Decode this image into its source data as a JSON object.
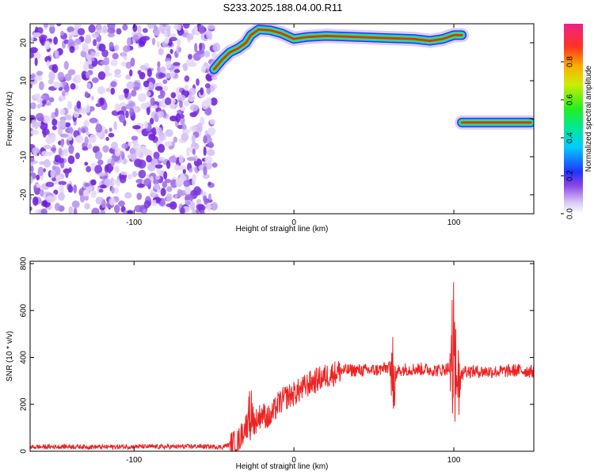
{
  "title": "S233.2025.188.04.00.R11",
  "chart_data": [
    {
      "type": "heatmap",
      "xlabel": "Height of straight line (km)",
      "ylabel": "Frequency (Hz)",
      "xlim": [
        -165,
        150
      ],
      "ylim": [
        -25,
        25
      ],
      "xticks": [
        -100,
        0,
        100
      ],
      "yticks": [
        -20,
        -10,
        0,
        10,
        20
      ],
      "colorbar": {
        "label": "Normalized spectral amplitude",
        "range": [
          0,
          1
        ],
        "ticks": [
          "0.0",
          "0.2",
          "0.4",
          "0.6",
          "0.8"
        ],
        "tick_values": [
          0,
          0.2,
          0.4,
          0.6,
          0.8
        ]
      },
      "features": [
        {
          "name": "noise",
          "x_range": [
            -165,
            -52
          ],
          "y_range": [
            -25,
            25
          ]
        },
        {
          "name": "ridge_upper",
          "points": [
            [
              -50,
              13
            ],
            [
              -45,
              15.5
            ],
            [
              -40,
              17.5
            ],
            [
              -35,
              18.5
            ],
            [
              -30,
              20
            ],
            [
              -27,
              22
            ],
            [
              -22,
              23.5
            ],
            [
              -15,
              23.3
            ],
            [
              -8,
              22.5
            ],
            [
              0,
              21
            ],
            [
              8,
              21.5
            ],
            [
              20,
              21.8
            ],
            [
              40,
              21.5
            ],
            [
              60,
              21.2
            ],
            [
              75,
              21
            ],
            [
              85,
              20.5
            ],
            [
              93,
              21
            ],
            [
              100,
              22
            ],
            [
              105,
              22
            ]
          ]
        },
        {
          "name": "ridge_lower",
          "points": [
            [
              105,
              -1
            ],
            [
              115,
              -1
            ],
            [
              130,
              -1
            ],
            [
              140,
              -1
            ],
            [
              148,
              -1
            ]
          ]
        }
      ]
    },
    {
      "type": "line",
      "xlabel": "Height of straight line (km)",
      "ylabel": "SNR (10 * v/v)",
      "xlim": [
        -165,
        150
      ],
      "ylim": [
        0,
        810
      ],
      "xticks": [
        -100,
        0,
        100
      ],
      "yticks": [
        0,
        200,
        400,
        600,
        800
      ],
      "color": "#ee2222",
      "x": [
        -165,
        -140,
        -120,
        -100,
        -80,
        -60,
        -45,
        -35,
        -30,
        -25,
        -20,
        -15,
        -10,
        -5,
        0,
        5,
        10,
        20,
        30,
        40,
        50,
        55,
        60,
        62,
        65,
        70,
        80,
        90,
        95,
        98,
        100,
        102,
        105,
        110,
        120,
        130,
        140,
        150
      ],
      "y": [
        18,
        20,
        18,
        20,
        19,
        21,
        18,
        40,
        110,
        120,
        160,
        140,
        200,
        230,
        245,
        265,
        290,
        320,
        345,
        345,
        345,
        350,
        360,
        340,
        345,
        350,
        350,
        345,
        350,
        360,
        340,
        350,
        350,
        340,
        340,
        340,
        345,
        340
      ],
      "spikes": [
        {
          "x": 62,
          "max": 500,
          "min": 120
        },
        {
          "x": 100,
          "max": 810,
          "min": 20
        },
        {
          "x": 103,
          "max": 460,
          "min": 100
        },
        {
          "x": -27,
          "max": 290,
          "min": 20
        }
      ]
    }
  ]
}
